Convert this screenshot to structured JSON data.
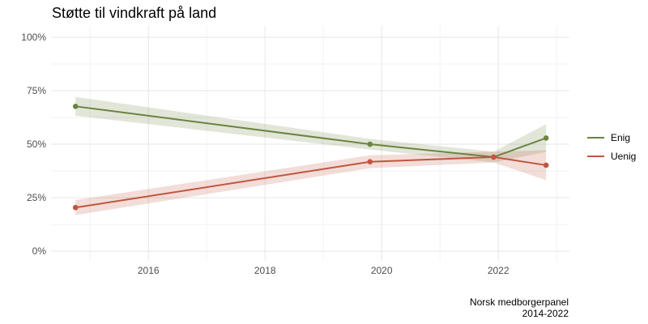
{
  "chart_data": {
    "type": "line",
    "title": "Støtte til vindkraft på land",
    "xlabel": "",
    "ylabel": "",
    "xlim": [
      2014.33,
      2023.22
    ],
    "ylim": [
      -4.5,
      105.3
    ],
    "xticks": [
      2016,
      2018,
      2020,
      2022
    ],
    "xtick_labels": [
      "2016",
      "2018",
      "2020",
      "2022"
    ],
    "yticks": [
      0,
      25,
      50,
      75,
      100
    ],
    "ytick_labels": [
      "0%",
      "25%",
      "50%",
      "75%",
      "100%"
    ],
    "grid": true,
    "legend_position": "right",
    "x": [
      2014.75,
      2019.8,
      2021.92,
      2022.82
    ],
    "series": [
      {
        "name": "Enig",
        "color": "#6b8440",
        "values": [
          67.7,
          50,
          44,
          52.9
        ],
        "ci": [
          4.4,
          2.5,
          2.5,
          6.5
        ]
      },
      {
        "name": "Uenig",
        "color": "#c0563f",
        "values": [
          20.4,
          41.8,
          44,
          40.2
        ],
        "ci": [
          3.5,
          3,
          2.5,
          7
        ]
      }
    ],
    "caption": [
      "Norsk medborgerpanel",
      "2014-2022"
    ]
  }
}
